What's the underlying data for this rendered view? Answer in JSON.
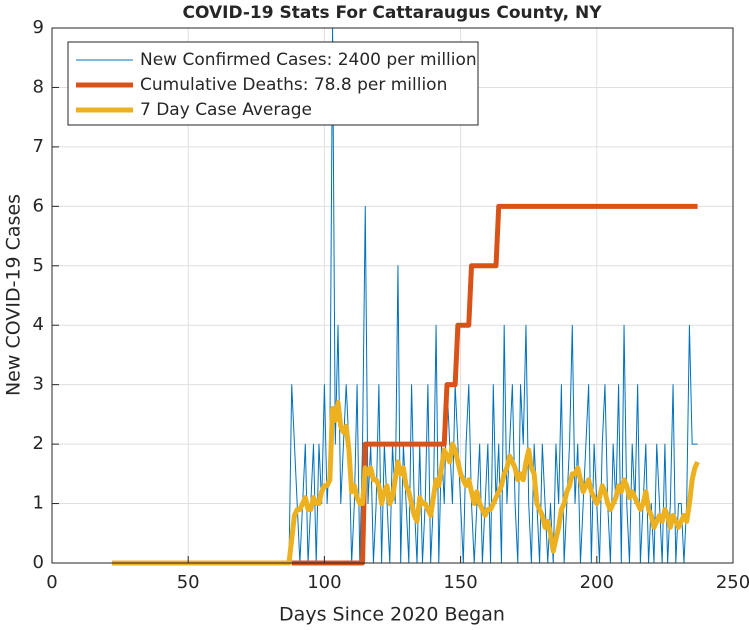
{
  "chart_data": {
    "type": "line",
    "title": "COVID-19 Stats For Cattaraugus County, NY",
    "xlabel": "Days Since 2020 Began",
    "ylabel": "New COVID-19 Cases",
    "xlim": [
      0,
      250
    ],
    "xticks": [
      0,
      50,
      100,
      150,
      200,
      250
    ],
    "ylim": [
      0,
      9
    ],
    "yticks": [
      0,
      1,
      2,
      3,
      4,
      5,
      6,
      7,
      8,
      9
    ],
    "grid": true,
    "legend": "upper left",
    "x": [
      22,
      23,
      24,
      25,
      26,
      27,
      28,
      29,
      30,
      31,
      32,
      33,
      34,
      35,
      36,
      37,
      38,
      39,
      40,
      41,
      42,
      43,
      44,
      45,
      46,
      47,
      48,
      49,
      50,
      51,
      52,
      53,
      54,
      55,
      56,
      57,
      58,
      59,
      60,
      61,
      62,
      63,
      64,
      65,
      66,
      67,
      68,
      69,
      70,
      71,
      72,
      73,
      74,
      75,
      76,
      77,
      78,
      79,
      80,
      81,
      82,
      83,
      84,
      85,
      86,
      87,
      88,
      89,
      90,
      91,
      92,
      93,
      94,
      95,
      96,
      97,
      98,
      99,
      100,
      101,
      102,
      103,
      104,
      105,
      106,
      107,
      108,
      109,
      110,
      111,
      112,
      113,
      114,
      115,
      116,
      117,
      118,
      119,
      120,
      121,
      122,
      123,
      124,
      125,
      126,
      127,
      128,
      129,
      130,
      131,
      132,
      133,
      134,
      135,
      136,
      137,
      138,
      139,
      140,
      141,
      142,
      143,
      144,
      145,
      146,
      147,
      148,
      149,
      150,
      151,
      152,
      153,
      154,
      155,
      156,
      157,
      158,
      159,
      160,
      161,
      162,
      163,
      164,
      165,
      166,
      167,
      168,
      169,
      170,
      171,
      172,
      173,
      174,
      175,
      176,
      177,
      178,
      179,
      180,
      181,
      182,
      183,
      184,
      185,
      186,
      187,
      188,
      189,
      190,
      191,
      192,
      193,
      194,
      195,
      196,
      197,
      198,
      199,
      200,
      201,
      202,
      203,
      204,
      205,
      206,
      207,
      208,
      209,
      210,
      211,
      212,
      213,
      214,
      215,
      216,
      217,
      218,
      219,
      220,
      221,
      222,
      223,
      224,
      225,
      226,
      227,
      228,
      229,
      230,
      231,
      232,
      233,
      234,
      235,
      236,
      237
    ],
    "series": [
      {
        "name": "New Confirmed Cases: 2400 per million",
        "color": "#0072BD",
        "width": 1,
        "values": [
          0,
          0,
          0,
          0,
          0,
          0,
          0,
          0,
          0,
          0,
          0,
          0,
          0,
          0,
          0,
          0,
          0,
          0,
          0,
          0,
          0,
          0,
          0,
          0,
          0,
          0,
          0,
          0,
          0,
          0,
          0,
          0,
          0,
          0,
          0,
          0,
          0,
          0,
          0,
          0,
          0,
          0,
          0,
          0,
          0,
          0,
          0,
          0,
          0,
          0,
          0,
          0,
          0,
          0,
          0,
          0,
          0,
          0,
          0,
          0,
          0,
          0,
          0,
          0,
          0,
          0,
          3,
          2,
          1,
          0,
          1,
          2,
          0,
          1,
          2,
          0,
          2,
          1,
          3,
          1,
          2,
          9,
          2,
          4,
          1,
          2,
          3,
          2,
          0,
          1,
          3,
          0,
          2,
          6,
          1,
          2,
          0,
          1,
          3,
          0,
          2,
          1,
          0,
          2,
          1,
          5,
          0,
          2,
          1,
          0,
          3,
          1,
          0,
          2,
          0,
          1,
          3,
          0,
          1,
          4,
          0,
          2,
          1,
          3,
          2,
          1,
          3,
          2,
          1,
          0,
          2,
          3,
          1,
          0,
          1,
          2,
          0,
          1,
          2,
          0,
          3,
          1,
          2,
          0,
          4,
          1,
          2,
          3,
          1,
          0,
          3,
          2,
          4,
          1,
          0,
          2,
          1,
          0,
          2,
          1,
          0,
          1,
          0,
          2,
          1,
          3,
          0,
          1,
          2,
          4,
          1,
          2,
          0,
          1,
          2,
          3,
          0,
          2,
          1,
          0,
          2,
          3,
          1,
          0,
          2,
          1,
          3,
          0,
          4,
          1,
          0,
          2,
          1,
          3,
          0,
          1,
          2,
          0,
          1,
          0,
          2,
          1,
          0,
          2,
          0,
          1,
          3,
          0,
          1,
          1,
          0,
          1,
          4,
          2,
          2,
          2
        ]
      },
      {
        "name": "Cumulative Deaths: 78.8 per million",
        "color": "#D95319",
        "width": 5,
        "values": [
          null,
          null,
          null,
          null,
          null,
          null,
          null,
          null,
          null,
          null,
          null,
          null,
          null,
          null,
          null,
          null,
          null,
          null,
          null,
          null,
          null,
          null,
          null,
          null,
          null,
          null,
          null,
          null,
          null,
          null,
          null,
          null,
          null,
          null,
          null,
          null,
          null,
          null,
          null,
          null,
          null,
          null,
          null,
          null,
          null,
          null,
          null,
          null,
          null,
          null,
          null,
          null,
          null,
          null,
          null,
          null,
          null,
          null,
          null,
          null,
          null,
          null,
          null,
          null,
          null,
          null,
          0,
          0,
          0,
          0,
          0,
          0,
          0,
          0,
          0,
          0,
          0,
          0,
          0,
          0,
          0,
          0,
          0,
          0,
          0,
          0,
          0,
          0,
          0,
          0,
          0,
          0,
          0,
          2,
          2,
          2,
          2,
          2,
          2,
          2,
          2,
          2,
          2,
          2,
          2,
          2,
          2,
          2,
          2,
          2,
          2,
          2,
          2,
          2,
          2,
          2,
          2,
          2,
          2,
          2,
          2,
          2,
          2,
          3,
          3,
          3,
          3,
          4,
          4,
          4,
          4,
          4,
          5,
          5,
          5,
          5,
          5,
          5,
          5,
          5,
          5,
          5,
          6,
          6,
          6,
          6,
          6,
          6,
          6,
          6,
          6,
          6,
          6,
          6,
          6,
          6,
          6,
          6,
          6,
          6,
          6,
          6,
          6,
          6,
          6,
          6,
          6,
          6,
          6,
          6,
          6,
          6,
          6,
          6,
          6,
          6,
          6,
          6,
          6,
          6,
          6,
          6,
          6,
          6,
          6,
          6,
          6,
          6,
          6,
          6,
          6,
          6,
          6,
          6,
          6,
          6,
          6,
          6,
          6,
          6,
          6,
          6,
          6,
          6,
          6,
          6,
          6,
          6,
          6,
          6,
          6,
          6,
          6,
          6,
          6,
          6
        ]
      },
      {
        "name": "7 Day Case Average",
        "color": "#EDB120",
        "width": 5,
        "values": [
          0,
          0,
          0,
          0,
          0,
          0,
          0,
          0,
          0,
          0,
          0,
          0,
          0,
          0,
          0,
          0,
          0,
          0,
          0,
          0,
          0,
          0,
          0,
          0,
          0,
          0,
          0,
          0,
          0,
          0,
          0,
          0,
          0,
          0,
          0,
          0,
          0,
          0,
          0,
          0,
          0,
          0,
          0,
          0,
          0,
          0,
          0,
          0,
          0,
          0,
          0,
          0,
          0,
          0,
          0,
          0,
          0,
          0,
          0,
          0,
          0,
          0,
          0,
          0,
          0,
          0,
          0.4,
          0.8,
          0.9,
          0.9,
          1.0,
          1.1,
          0.9,
          0.9,
          1.1,
          1.0,
          1.0,
          1.2,
          1.3,
          1.3,
          1.4,
          2.6,
          2.4,
          2.7,
          2.3,
          2.2,
          2.3,
          1.9,
          1.2,
          1.3,
          1.1,
          1.0,
          1.0,
          1.6,
          1.5,
          1.6,
          1.4,
          1.4,
          1.3,
          1.0,
          1.2,
          1.3,
          1.0,
          1.1,
          1.4,
          1.7,
          1.5,
          1.6,
          1.3,
          1.2,
          1.0,
          0.8,
          0.7,
          1.1,
          1.0,
          1.0,
          0.9,
          0.8,
          1.1,
          1.4,
          1.3,
          1.6,
          1.9,
          1.8,
          1.7,
          2.0,
          1.9,
          1.7,
          1.5,
          1.4,
          1.3,
          1.4,
          1.2,
          1.0,
          1.2,
          1.0,
          0.9,
          0.8,
          0.9,
          0.9,
          1.0,
          1.1,
          1.2,
          1.3,
          1.5,
          1.6,
          1.8,
          1.7,
          1.6,
          1.4,
          1.5,
          1.4,
          1.7,
          1.9,
          1.6,
          1.5,
          1.0,
          0.9,
          0.8,
          0.6,
          0.7,
          0.5,
          0.2,
          0.4,
          0.6,
          0.9,
          1.0,
          1.2,
          1.3,
          1.5,
          1.5,
          1.6,
          1.4,
          1.2,
          1.3,
          1.4,
          1.2,
          1.1,
          1.0,
          1.1,
          1.3,
          1.2,
          1.0,
          0.9,
          1.0,
          1.1,
          1.3,
          1.2,
          1.4,
          1.3,
          1.1,
          1.2,
          1.1,
          1.0,
          0.9,
          1.0,
          1.2,
          0.9,
          0.8,
          0.6,
          0.7,
          0.8,
          0.7,
          0.9,
          0.8,
          0.6,
          0.8,
          0.7,
          0.6,
          0.7,
          0.8,
          0.7,
          1.0,
          1.4,
          1.6,
          1.7
        ]
      }
    ]
  }
}
